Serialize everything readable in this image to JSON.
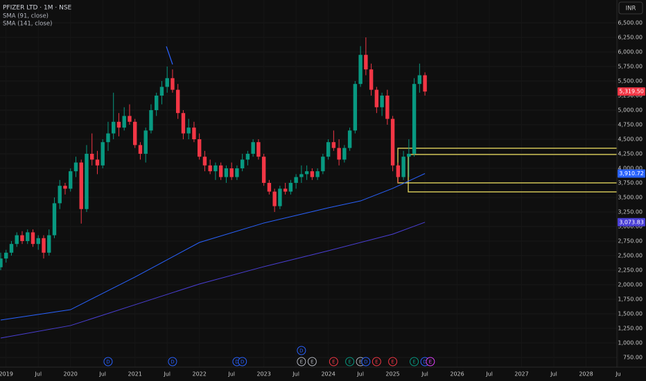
{
  "chart_data": {
    "type": "candlestick",
    "title": "PFIZER LTD · 1M · NSE",
    "currency": "INR",
    "x": [
      "2018-12",
      "2019-01",
      "2019-02",
      "2019-03",
      "2019-04",
      "2019-05",
      "2019-06",
      "2019-07",
      "2019-08",
      "2019-09",
      "2019-10",
      "2019-11",
      "2019-12",
      "2020-01",
      "2020-02",
      "2020-03",
      "2020-04",
      "2020-05",
      "2020-06",
      "2020-07",
      "2020-08",
      "2020-09",
      "2020-10",
      "2020-11",
      "2020-12",
      "2021-01",
      "2021-02",
      "2021-03",
      "2021-04",
      "2021-05",
      "2021-06",
      "2021-07",
      "2021-08",
      "2021-09",
      "2021-10",
      "2021-11",
      "2021-12",
      "2022-01",
      "2022-02",
      "2022-03",
      "2022-04",
      "2022-05",
      "2022-06",
      "2022-07",
      "2022-08",
      "2022-09",
      "2022-10",
      "2022-11",
      "2022-12",
      "2023-01",
      "2023-02",
      "2023-03",
      "2023-04",
      "2023-05",
      "2023-06",
      "2023-07",
      "2023-08",
      "2023-09",
      "2023-10",
      "2023-11",
      "2023-12",
      "2024-01",
      "2024-02",
      "2024-03",
      "2024-04",
      "2024-05",
      "2024-06",
      "2024-07",
      "2024-08",
      "2024-09",
      "2024-10",
      "2024-11",
      "2024-12",
      "2025-01",
      "2025-02",
      "2025-03",
      "2025-04",
      "2025-05",
      "2025-06",
      "2025-07"
    ],
    "open": [
      2300,
      2450,
      2550,
      2700,
      2850,
      2750,
      2900,
      2700,
      2800,
      2550,
      2850,
      3400,
      3700,
      3650,
      3950,
      4100,
      3300,
      4250,
      4150,
      4050,
      4450,
      4600,
      4800,
      4700,
      4900,
      4800,
      4400,
      4250,
      4650,
      5000,
      5250,
      5400,
      5550,
      5350,
      4950,
      4600,
      4700,
      4500,
      4200,
      4050,
      3950,
      4050,
      3850,
      4000,
      3850,
      4000,
      4150,
      4250,
      4450,
      4200,
      3750,
      3600,
      3350,
      3650,
      3600,
      3750,
      3850,
      3900,
      3950,
      3850,
      3950,
      4200,
      4450,
      4350,
      4150,
      4350,
      4650,
      5450,
      5950,
      5700,
      5350,
      5050,
      5250,
      4850,
      4050,
      3850,
      4200,
      4250,
      5450,
      5600
    ],
    "high": [
      2550,
      2600,
      2750,
      2900,
      2920,
      2950,
      2950,
      2850,
      2850,
      2950,
      3500,
      3800,
      3750,
      4000,
      4200,
      4150,
      4400,
      4600,
      4300,
      4500,
      4800,
      5300,
      4950,
      5050,
      5100,
      4850,
      4450,
      4700,
      5100,
      5300,
      5500,
      5750,
      5700,
      5450,
      5000,
      4850,
      4800,
      4600,
      4300,
      4150,
      4100,
      4100,
      4050,
      4100,
      4050,
      4250,
      4300,
      4500,
      4500,
      4250,
      3800,
      3650,
      3700,
      3750,
      3800,
      3900,
      4050,
      4050,
      4000,
      4000,
      4250,
      4500,
      4650,
      4500,
      4400,
      4700,
      5500,
      6100,
      6250,
      5800,
      5400,
      5300,
      5350,
      4900,
      4100,
      4300,
      4500,
      5550,
      5800,
      5650
    ],
    "low": [
      2250,
      2380,
      2500,
      2650,
      2700,
      2700,
      2650,
      2600,
      2450,
      2500,
      2800,
      3300,
      3550,
      3600,
      3850,
      3050,
      3250,
      4050,
      3900,
      4000,
      4300,
      4500,
      4550,
      4650,
      4750,
      4350,
      4150,
      4100,
      4600,
      4900,
      5100,
      5300,
      5300,
      4850,
      4500,
      4500,
      4450,
      4150,
      3950,
      3900,
      3800,
      3800,
      3750,
      3800,
      3800,
      3950,
      4050,
      4200,
      4150,
      3700,
      3550,
      3250,
      3300,
      3550,
      3550,
      3650,
      3750,
      3800,
      3800,
      3800,
      3900,
      4150,
      4300,
      4050,
      4100,
      4300,
      4600,
      5400,
      5600,
      5250,
      4950,
      4900,
      4750,
      3950,
      3750,
      3800,
      3850,
      4200,
      5300,
      5250
    ],
    "close": [
      2450,
      2550,
      2700,
      2850,
      2750,
      2900,
      2700,
      2800,
      2550,
      2850,
      3400,
      3700,
      3650,
      3950,
      4100,
      3300,
      4250,
      4150,
      4050,
      4450,
      4600,
      4800,
      4700,
      4900,
      4800,
      4400,
      4250,
      4650,
      5000,
      5250,
      5400,
      5550,
      5350,
      4950,
      4600,
      4700,
      4500,
      4200,
      4050,
      3950,
      4050,
      3850,
      4000,
      3850,
      4000,
      4150,
      4250,
      4450,
      4200,
      3750,
      3600,
      3350,
      3650,
      3600,
      3750,
      3850,
      3900,
      3950,
      3850,
      3950,
      4200,
      4450,
      4350,
      4150,
      4350,
      4650,
      5450,
      5950,
      5700,
      5350,
      5050,
      5250,
      4850,
      4050,
      3850,
      4200,
      4250,
      5450,
      5600,
      5319.5
    ],
    "up_color": "#089981",
    "down_color": "#f23645",
    "last_price": {
      "value": 5319.5,
      "label": "5,319.50"
    },
    "overlays": [
      {
        "name": "SMA (91, close)",
        "color": "#2962ff",
        "x": [
          "2018-12",
          "2020-01",
          "2021-01",
          "2022-01",
          "2023-01",
          "2024-01",
          "2024-07",
          "2025-01",
          "2025-07"
        ],
        "values": [
          1393,
          1571,
          2131,
          2726,
          3060,
          3321,
          3440,
          3655,
          3910.72
        ],
        "last_label": "3,910.72"
      },
      {
        "name": "SMA (141, close)",
        "color": "#4a3fd6",
        "x": [
          "2018-12",
          "2020-01",
          "2021-01",
          "2022-01",
          "2023-01",
          "2024-01",
          "2025-01",
          "2025-07"
        ],
        "values": [
          1083,
          1298,
          1655,
          2012,
          2310,
          2583,
          2869,
          3073.83
        ],
        "last_label": "3,073.83"
      }
    ],
    "events": [
      {
        "label": "D",
        "x": "2020-08",
        "color": "#2962ff",
        "raised": false
      },
      {
        "label": "D",
        "x": "2021-08",
        "color": "#2962ff",
        "raised": false
      },
      {
        "label": "D",
        "x": "2022-08",
        "color": "#2962ff",
        "raised": false
      },
      {
        "label": "D",
        "x": "2022-09",
        "color": "#2962ff",
        "raised": false
      },
      {
        "label": "D",
        "x": "2023-08",
        "color": "#2962ff",
        "raised": true
      },
      {
        "label": "E",
        "x": "2023-08",
        "color": "#b2b5be",
        "raised": false
      },
      {
        "label": "E",
        "x": "2023-10",
        "color": "#b2b5be",
        "raised": false
      },
      {
        "label": "E",
        "x": "2024-02",
        "color": "#f23645",
        "raised": false
      },
      {
        "label": "E",
        "x": "2024-05",
        "color": "#089981",
        "raised": false
      },
      {
        "label": "E",
        "x": "2024-07",
        "color": "#b2b5be",
        "raised": false
      },
      {
        "label": "D",
        "x": "2024-08",
        "color": "#2962ff",
        "raised": false
      },
      {
        "label": "E",
        "x": "2024-10",
        "color": "#f23645",
        "raised": false
      },
      {
        "label": "E",
        "x": "2025-01",
        "color": "#f23645",
        "raised": false
      },
      {
        "label": "E",
        "x": "2025-05",
        "color": "#089981",
        "raised": false
      },
      {
        "label": "D",
        "x": "2025-07",
        "color": "#2962ff",
        "raised": false
      },
      {
        "label": "E",
        "x": "2025-08",
        "color": "#e040fb",
        "raised": false
      }
    ],
    "xlim": [
      "2018-12",
      "2028-07"
    ],
    "xticks": [
      {
        "value": "2019-01",
        "label": "2019"
      },
      {
        "value": "2019-07",
        "label": "Jul"
      },
      {
        "value": "2020-01",
        "label": "2020"
      },
      {
        "value": "2020-07",
        "label": "Jul"
      },
      {
        "value": "2021-01",
        "label": "2021"
      },
      {
        "value": "2021-07",
        "label": "Jul"
      },
      {
        "value": "2022-01",
        "label": "2022"
      },
      {
        "value": "2022-07",
        "label": "Jul"
      },
      {
        "value": "2023-01",
        "label": "2023"
      },
      {
        "value": "2023-07",
        "label": "Jul"
      },
      {
        "value": "2024-01",
        "label": "2024"
      },
      {
        "value": "2024-07",
        "label": "Jul"
      },
      {
        "value": "2025-01",
        "label": "2025"
      },
      {
        "value": "2025-07",
        "label": "Jul"
      },
      {
        "value": "2026-01",
        "label": "2026"
      },
      {
        "value": "2026-07",
        "label": "Jul"
      },
      {
        "value": "2027-01",
        "label": "2027"
      },
      {
        "value": "2027-07",
        "label": "Jul"
      },
      {
        "value": "2028-01",
        "label": "2028"
      },
      {
        "value": "2028-07",
        "label": "Ju"
      }
    ],
    "ylim": [
      583,
      6893
    ],
    "yticks": [
      {
        "value": 750,
        "label": "750.00"
      },
      {
        "value": 1000,
        "label": "1,000.00"
      },
      {
        "value": 1250,
        "label": "1,250.00"
      },
      {
        "value": 1500,
        "label": "1,500.00"
      },
      {
        "value": 1750,
        "label": "1,750.00"
      },
      {
        "value": 2000,
        "label": "2,000.00"
      },
      {
        "value": 2250,
        "label": "2,250.00"
      },
      {
        "value": 2500,
        "label": "2,500.00"
      },
      {
        "value": 2750,
        "label": "2,750.00"
      },
      {
        "value": 3000,
        "label": "3,000.00"
      },
      {
        "value": 3250,
        "label": "3,250.00"
      },
      {
        "value": 3500,
        "label": "3,500.00"
      },
      {
        "value": 3750,
        "label": "3,750.00"
      },
      {
        "value": 4000,
        "label": "4,000.00"
      },
      {
        "value": 4250,
        "label": "4,250.00"
      },
      {
        "value": 4500,
        "label": "4,500.00"
      },
      {
        "value": 4750,
        "label": "4,750.00"
      },
      {
        "value": 5000,
        "label": "5,000.00"
      },
      {
        "value": 5250,
        "label": "5,250.00"
      },
      {
        "value": 5500,
        "label": "5,500.00"
      },
      {
        "value": 5750,
        "label": "5,750.00"
      },
      {
        "value": 6000,
        "label": "6,000.00"
      },
      {
        "value": 6250,
        "label": "6,250.00"
      },
      {
        "value": 6500,
        "label": "6,500.00"
      }
    ],
    "grid": true
  }
}
